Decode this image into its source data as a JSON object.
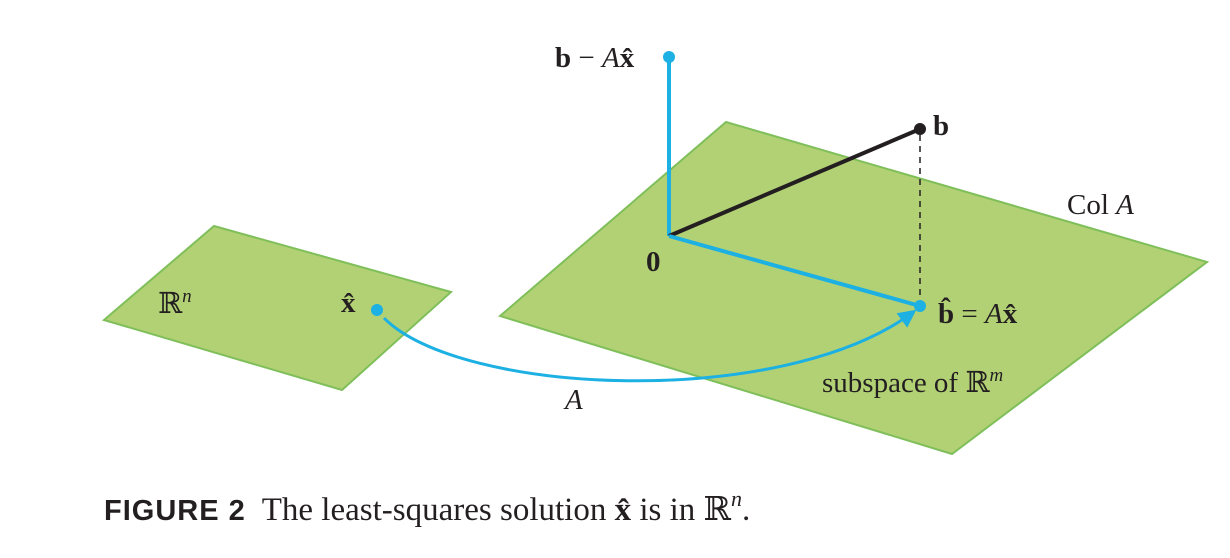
{
  "diagram": {
    "colors": {
      "plane_fill": "#b2d175",
      "plane_edge": "#7fbf5a",
      "blue": "#1cb0e3",
      "dark": "#231f20"
    },
    "labels": {
      "residual_b": "b",
      "residual_minus": " − ",
      "residual_A": "A",
      "residual_x": "x̂",
      "b": "b",
      "col_prefix": "Col ",
      "col_A": "A",
      "origin": "0",
      "bhat": "b̂",
      "bhat_eq": " = ",
      "bhat_A": "A",
      "bhat_x": "x̂",
      "subspace_text": "subspace of ",
      "Rm_R": "ℝ",
      "Rm_exp": "m",
      "Rn_R": "ℝ",
      "Rn_exp": "n",
      "xhat": "x̂",
      "arrow_A": "A"
    }
  },
  "caption": {
    "number": "FIGURE 2",
    "text_before": "The least-squares solution ",
    "xhat": "x̂",
    "text_middle": " is in ",
    "R": "ℝ",
    "exp": "n",
    "end": "."
  }
}
